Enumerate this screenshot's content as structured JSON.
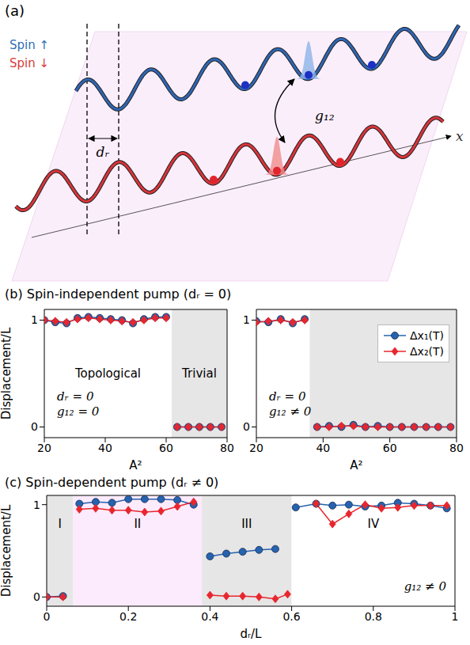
{
  "diagram": {
    "label": "(a)",
    "spin_up": "Spin ↑",
    "spin_down": "Spin ↓",
    "axis": "x",
    "shift": "dᵣ",
    "coupling": "g₁₂"
  },
  "panel_b_title": "(b) Spin-independent pump (dᵣ = 0)",
  "chart_data": [
    {
      "type": "line",
      "x": [
        20,
        23.6,
        27.3,
        30.9,
        34.5,
        38.2,
        41.8,
        45.5,
        49.1,
        52.7,
        56.4,
        60,
        63.6,
        67.3,
        70.9,
        74.5,
        78.2
      ],
      "series": [
        {
          "name": "Δx₁(T)",
          "color": "#2563b0",
          "marker": "circle",
          "values": [
            1.0,
            0.98,
            0.97,
            1.02,
            1.03,
            1.02,
            1.01,
            1.0,
            0.97,
            1.01,
            1.03,
            1.03,
            0,
            0,
            0,
            0,
            0
          ]
        },
        {
          "name": "Δx₂(T)",
          "color": "#e8262e",
          "marker": "diamond",
          "values": [
            1.0,
            0.99,
            0.98,
            1.01,
            1.02,
            1.01,
            1.0,
            0.99,
            0.98,
            1.0,
            1.02,
            1.02,
            0,
            0,
            0,
            0,
            0
          ]
        }
      ],
      "xlim": [
        20,
        80
      ],
      "xticks": [
        20,
        40,
        60,
        80
      ],
      "ylim": [
        -0.1,
        1.1
      ],
      "yticks": [
        0,
        1
      ],
      "x_label": "A²",
      "y_label": "Displacement/L",
      "regions": [
        {
          "from": 20,
          "to": 61.8,
          "color": "#ffffff",
          "label": "Topological"
        },
        {
          "from": 61.8,
          "to": 80,
          "color": "#e6e6e6",
          "label": "Trivial"
        }
      ],
      "annotations": [
        "dᵣ = 0",
        "g₁₂ = 0"
      ],
      "legend": "none"
    },
    {
      "type": "line",
      "x": [
        20,
        23.6,
        27.3,
        30.9,
        34.5,
        38.2,
        41.8,
        45.5,
        49.1,
        52.7,
        56.4,
        60,
        63.6,
        67.3,
        70.9,
        74.5,
        78.2
      ],
      "series": [
        {
          "name": "Δx₁(T)",
          "color": "#2563b0",
          "marker": "circle",
          "values": [
            0.99,
            0.98,
            1.01,
            0.97,
            1.01,
            0,
            0.01,
            0,
            0.02,
            0,
            0.01,
            0,
            0,
            0,
            0,
            0,
            0
          ]
        },
        {
          "name": "Δx₂(T)",
          "color": "#e8262e",
          "marker": "diamond",
          "values": [
            0.98,
            0.99,
            1.0,
            0.98,
            1.0,
            0,
            0,
            0.01,
            0.01,
            0,
            0,
            0,
            0,
            0,
            0,
            0,
            0
          ]
        }
      ],
      "xlim": [
        20,
        80
      ],
      "xticks": [
        20,
        40,
        60,
        80
      ],
      "ylim": [
        -0.1,
        1.1
      ],
      "yticks": [
        0,
        1
      ],
      "x_label": "A²",
      "regions": [
        {
          "from": 20,
          "to": 36,
          "color": "#ffffff"
        },
        {
          "from": 36,
          "to": 80,
          "color": "#e6e6e6"
        }
      ],
      "annotations": [
        "dᵣ = 0",
        "g₁₂ ≠ 0"
      ],
      "legend": "upper right"
    },
    {
      "type": "line",
      "title": "(c) Spin-dependent pump (dᵣ ≠ 0)",
      "x": [
        0,
        0.04,
        0.08,
        0.12,
        0.16,
        0.2,
        0.24,
        0.28,
        0.32,
        0.36,
        0.4,
        0.44,
        0.48,
        0.52,
        0.56,
        0.59,
        0.61,
        0.66,
        0.7,
        0.74,
        0.78,
        0.82,
        0.86,
        0.9,
        0.94,
        0.98
      ],
      "series": [
        {
          "name": "Δx₁(T)",
          "color": "#2563b0",
          "marker": "circle",
          "values": [
            0,
            0.01,
            1.01,
            1.03,
            1.02,
            1.06,
            1.06,
            1.06,
            1.05,
            1.0,
            0.44,
            0.47,
            0.49,
            0.51,
            0.52,
            null,
            0.97,
            1.01,
            0.99,
            1.0,
            0.98,
            0.99,
            1.02,
            1.01,
            0.99,
            0.96
          ]
        },
        {
          "name": "Δx₂(T)",
          "color": "#e8262e",
          "marker": "diamond",
          "values": [
            0,
            0,
            0.95,
            0.96,
            0.94,
            0.94,
            0.92,
            0.93,
            0.98,
            1.03,
            0.02,
            0.01,
            0.01,
            0.0,
            -0.02,
            0.03,
            null,
            1.01,
            0.79,
            0.9,
            1.0,
            0.96,
            0.97,
            0.99,
            0.99,
            0.99
          ]
        }
      ],
      "xlim": [
        0,
        1
      ],
      "xticks": [
        0,
        0.2,
        0.4,
        0.6,
        0.8,
        1
      ],
      "ylim": [
        -0.1,
        1.1
      ],
      "yticks": [
        0,
        1
      ],
      "x_label": "dᵣ/L",
      "y_label": "Displacement/L",
      "regions": [
        {
          "from": 0,
          "to": 0.065,
          "color": "#e6e6e6",
          "label": "I"
        },
        {
          "from": 0.065,
          "to": 0.38,
          "color": "#fcebfc",
          "label": "II"
        },
        {
          "from": 0.38,
          "to": 0.6,
          "color": "#e6e6e6",
          "label": "III"
        },
        {
          "from": 0.6,
          "to": 1,
          "color": "#ffffff",
          "label": "IV"
        }
      ],
      "annotations": [
        "g₁₂ ≠ 0"
      ],
      "legend": "none"
    }
  ]
}
